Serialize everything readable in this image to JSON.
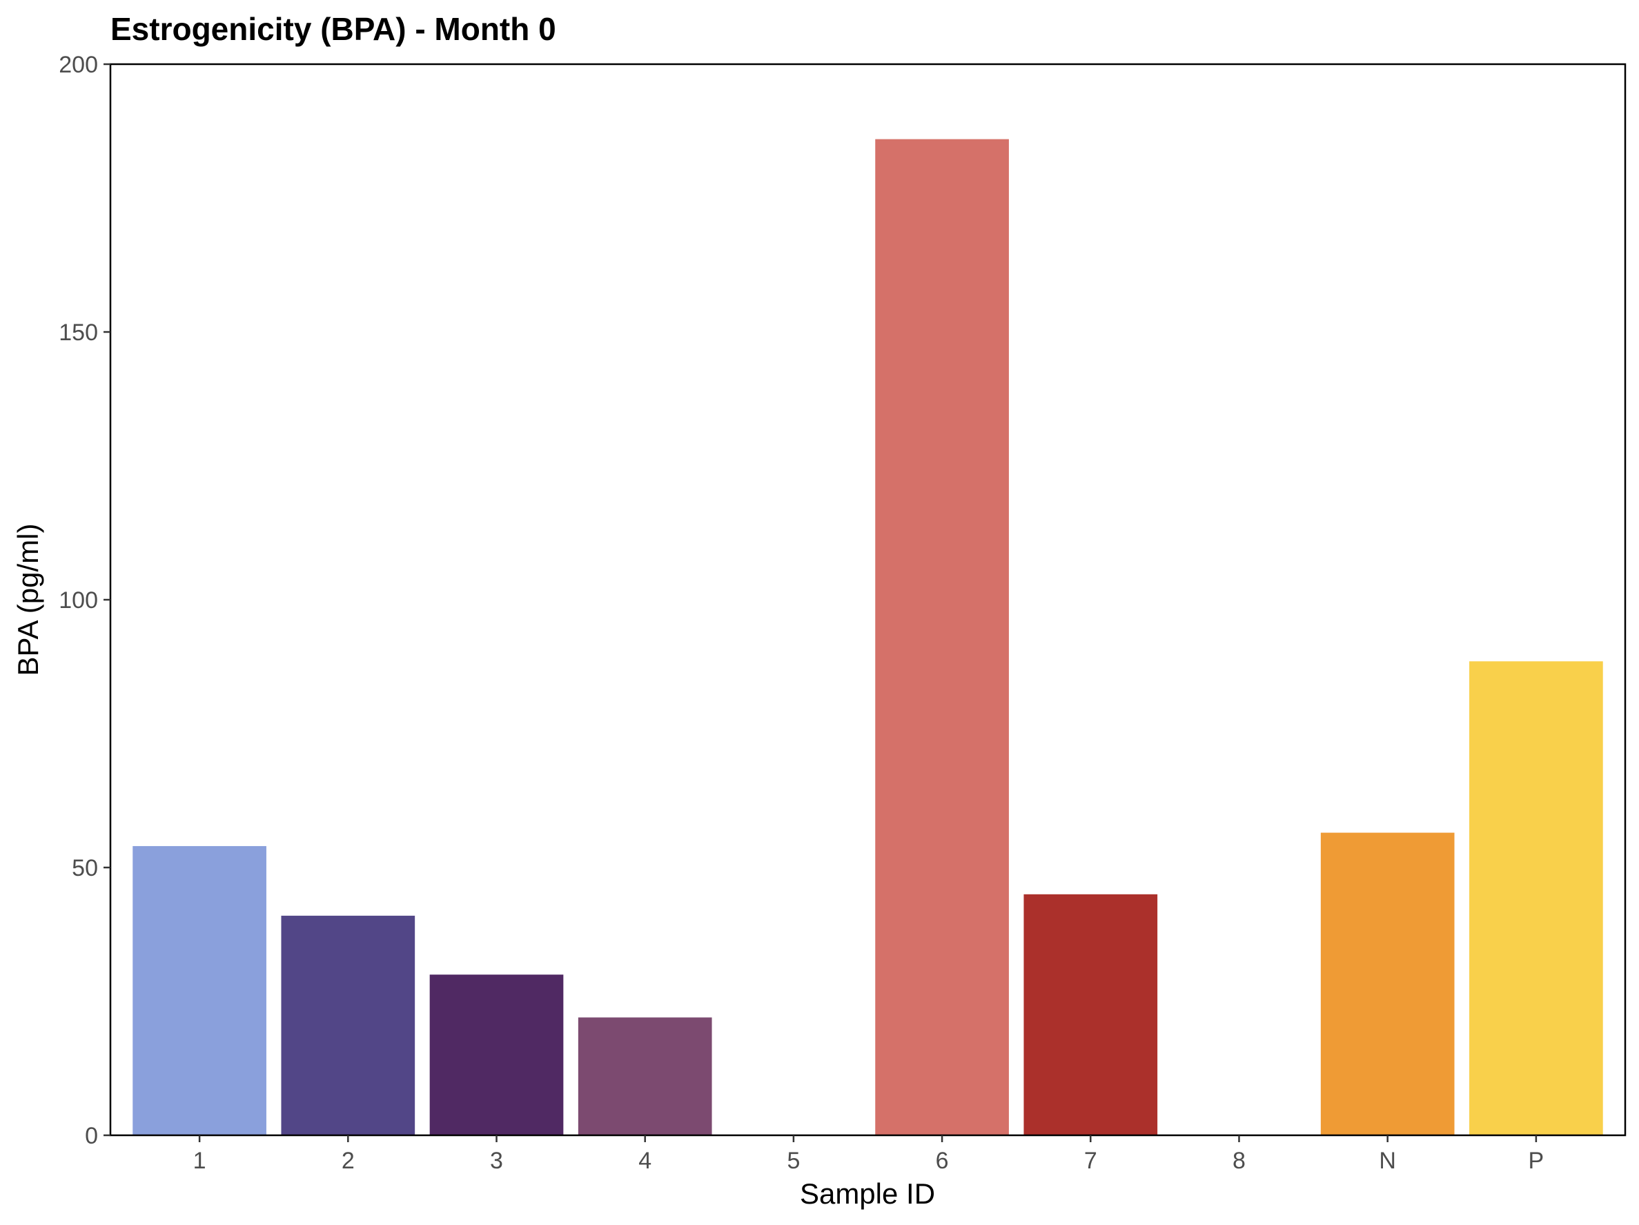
{
  "chart_data": {
    "type": "bar",
    "title": "Estrogenicity (BPA) - Month 0",
    "xlabel": "Sample ID",
    "ylabel": "BPA (pg/ml)",
    "ylim": [
      0,
      200
    ],
    "yticks": [
      0,
      50,
      100,
      150,
      200
    ],
    "grid": false,
    "legend": "none",
    "categories": [
      "1",
      "2",
      "3",
      "4",
      "5",
      "6",
      "7",
      "8",
      "N",
      "P"
    ],
    "values": [
      54,
      41,
      30,
      22,
      0,
      186,
      45,
      0,
      56.5,
      88.5
    ],
    "colors": [
      "#8aa0dc",
      "#524687",
      "#502963",
      "#7c4a70",
      "#ffffff",
      "#d57169",
      "#ab302b",
      "#ffffff",
      "#ef9b35",
      "#f9d04b"
    ]
  }
}
